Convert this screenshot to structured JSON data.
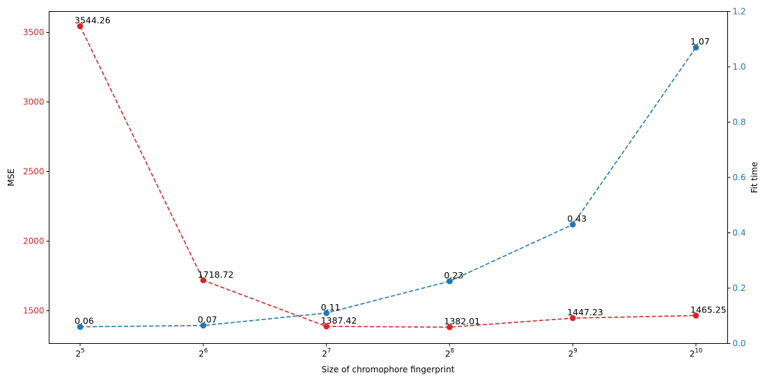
{
  "chart_data": {
    "type": "line",
    "title": "",
    "xlabel": "Size of chromophore fingerprint",
    "x": [
      {
        "base": "2",
        "exp": "5"
      },
      {
        "base": "2",
        "exp": "6"
      },
      {
        "base": "2",
        "exp": "7"
      },
      {
        "base": "2",
        "exp": "8"
      },
      {
        "base": "2",
        "exp": "9"
      },
      {
        "base": "2",
        "exp": "10"
      }
    ],
    "x_scale": "log2",
    "left_axis": {
      "label": "MSE",
      "color": "#d62728",
      "ylim": [
        1265,
        3650
      ],
      "ticks": [
        "1500",
        "2000",
        "2500",
        "3000",
        "3500"
      ]
    },
    "right_axis": {
      "label": "Fit time",
      "color": "#1f77b4",
      "ylim": [
        0.0,
        1.2
      ],
      "ticks": [
        "0.0",
        "0.2",
        "0.4",
        "0.6",
        "0.8",
        "1.0",
        "1.2"
      ]
    },
    "series": [
      {
        "axis": "left",
        "color": "#d62728",
        "line_style": "dashed",
        "marker": "circle",
        "values": [
          3544.26,
          1718.72,
          1387.42,
          1382.01,
          1447.23,
          1465.25
        ],
        "labels": [
          "3544.26",
          "1718.72",
          "1387.42",
          "1382.01",
          "1447.23",
          "1465.25"
        ]
      },
      {
        "axis": "right",
        "color": "#1f77b4",
        "line_style": "dashed",
        "marker": "circle",
        "values": [
          0.06,
          0.065,
          0.11,
          0.225,
          0.43,
          1.07
        ],
        "labels": [
          "0.06",
          "0.07",
          "0.11",
          "0.23",
          "0.43",
          "1.07"
        ]
      }
    ],
    "grid": false,
    "legend": "none"
  }
}
